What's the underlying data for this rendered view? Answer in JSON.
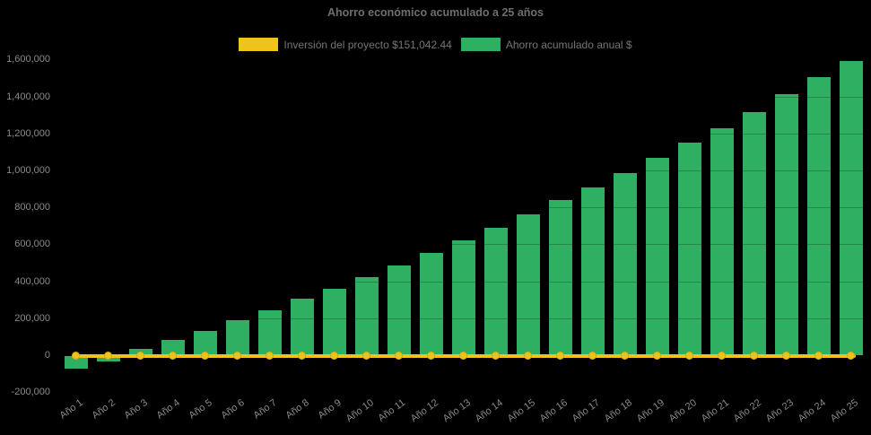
{
  "colors": {
    "background": "#000000",
    "bar": "#2FAF62",
    "line": "#EFC319",
    "tick_text": "#8A8A8A",
    "title_text": "#6E6E6E",
    "legend_text": "#757575"
  },
  "legend": {
    "items": [
      {
        "label": "Inversión del proyecto $151,042.44",
        "color": "#EFC319",
        "series": "line"
      },
      {
        "label": "Ahorro acumulado anual $",
        "color": "#2FAF62",
        "series": "bar"
      }
    ]
  },
  "chart_data": {
    "type": "bar",
    "title": "Ahorro económico acumulado a 25 años",
    "categories": [
      "Año 1",
      "Año 2",
      "Año 3",
      "Año 4",
      "Año 5",
      "Año 6",
      "Año 7",
      "Año 8",
      "Año 9",
      "Año 10",
      "Año 11",
      "Año 12",
      "Año 13",
      "Año 14",
      "Año 15",
      "Año 16",
      "Año 17",
      "Año 18",
      "Año 19",
      "Año 20",
      "Año 21",
      "Año 22",
      "Año 23",
      "Año 24",
      "Año 25"
    ],
    "series": [
      {
        "name": "Inversión del proyecto $151,042.44",
        "type": "line",
        "color": "#EFC319",
        "constant_value": 0,
        "marker": "circle"
      },
      {
        "name": "Ahorro acumulado anual $",
        "type": "bar",
        "color": "#2FAF62",
        "values": [
          -70000,
          -30000,
          34000,
          85000,
          135000,
          190000,
          246000,
          306000,
          362000,
          427000,
          490000,
          557000,
          625000,
          691000,
          765000,
          842000,
          910000,
          987000,
          1070000,
          1154000,
          1232000,
          1320000,
          1413000,
          1507000,
          1595000
        ]
      }
    ],
    "xlabel": "",
    "ylabel": "",
    "ylim": [
      -200000,
      1600000
    ],
    "y_tick_step": 200000,
    "y_tick_labels": [
      "-200,000",
      "0",
      "200,000",
      "400,000",
      "600,000",
      "800,000",
      "1,000,000",
      "1,200,000",
      "1,400,000",
      "1,600,000"
    ],
    "grid": "horizontal-subtle",
    "legend_position": "top"
  }
}
